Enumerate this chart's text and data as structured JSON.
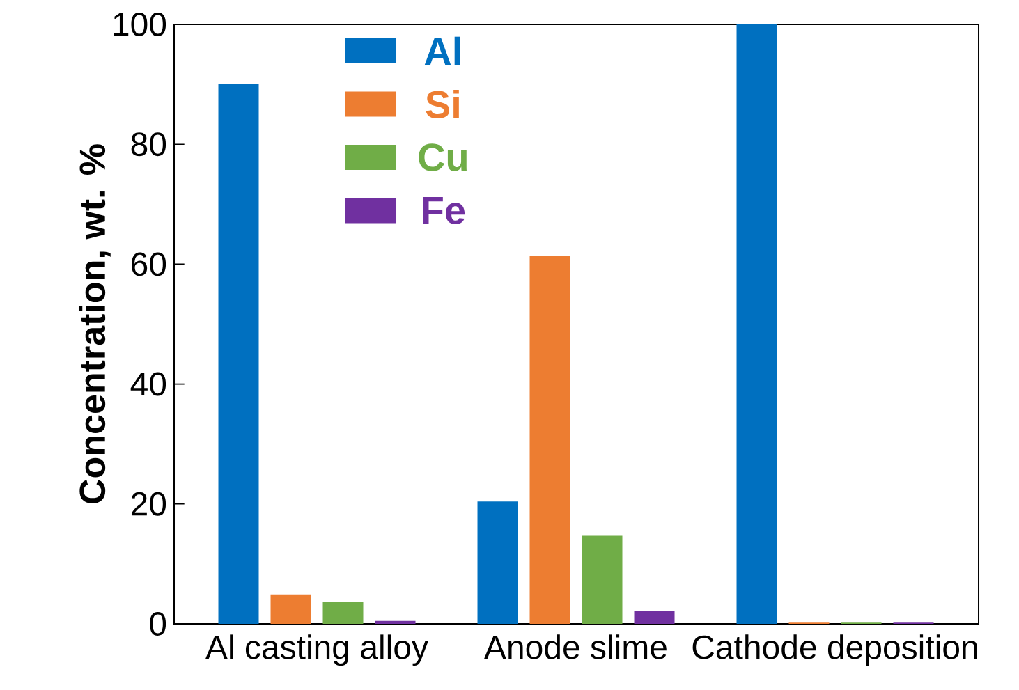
{
  "chart_data": {
    "type": "bar",
    "ylabel": "Concentration, wt. %",
    "categories": [
      "Al casting alloy",
      "Anode slime",
      "Cathode deposition"
    ],
    "series": [
      {
        "name": "Al",
        "color": "#0070c0",
        "values": [
          90.0,
          20.4,
          100
        ]
      },
      {
        "name": "Si",
        "color": "#ed7d31",
        "values": [
          4.9,
          61.4,
          0.2
        ]
      },
      {
        "name": "Cu",
        "color": "#70ad47",
        "values": [
          3.7,
          14.7,
          0.2
        ]
      },
      {
        "name": "Fe",
        "color": "#7030a0",
        "values": [
          0.5,
          2.2,
          0.2
        ]
      }
    ],
    "ylim": [
      0,
      100
    ],
    "yticks": [
      0,
      20,
      40,
      60,
      80,
      100
    ],
    "legend": "top left",
    "grid": false
  }
}
